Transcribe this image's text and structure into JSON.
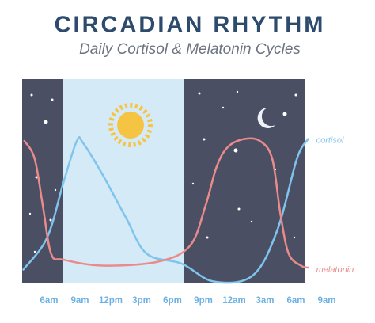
{
  "chart_data": {
    "type": "line",
    "title": "CIRCADIAN RHYTHM",
    "subtitle": "Daily Cortisol & Melatonin Cycles",
    "xlim": [
      3,
      34
    ],
    "xticks": [
      {
        "value": 6,
        "label": "6am"
      },
      {
        "value": 9,
        "label": "9am"
      },
      {
        "value": 12,
        "label": "12pm"
      },
      {
        "value": 15,
        "label": "3pm"
      },
      {
        "value": 18,
        "label": "6pm"
      },
      {
        "value": 21,
        "label": "9pm"
      },
      {
        "value": 24,
        "label": "12am"
      },
      {
        "value": 27,
        "label": "3am"
      },
      {
        "value": 30,
        "label": "6am"
      },
      {
        "value": 33,
        "label": "9am"
      }
    ],
    "series": [
      {
        "name": "cortisol",
        "color": "#7fc4ec",
        "x": [
          3.5,
          5.8,
          7.4,
          8.7,
          9.3,
          11.2,
          13.5,
          15.5,
          18.9,
          22,
          25.8,
          28.2,
          30.1,
          31.2
        ],
        "values": [
          7,
          23,
          51,
          72,
          71,
          55,
          33,
          15,
          10,
          1,
          4,
          27,
          63,
          73
        ]
      },
      {
        "name": "melatonin",
        "color": "#e98b8b",
        "x": [
          3.6,
          4.6,
          5.4,
          6.2,
          7.4,
          11.2,
          16.6,
          19.7,
          21.2,
          22.3,
          23.4,
          25,
          26.5,
          27.7,
          28.5,
          29.3,
          30.5,
          31.2
        ],
        "values": [
          72,
          63,
          39,
          15,
          12,
          9,
          11,
          19,
          39,
          59,
          69,
          73,
          72,
          63,
          35,
          15,
          9,
          8
        ]
      }
    ]
  }
}
